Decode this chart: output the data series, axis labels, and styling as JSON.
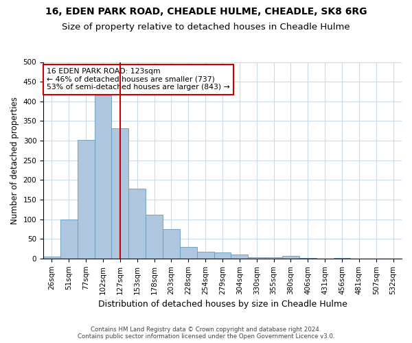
{
  "title1": "16, EDEN PARK ROAD, CHEADLE HULME, CHEADLE, SK8 6RG",
  "title2": "Size of property relative to detached houses in Cheadle Hulme",
  "xlabel": "Distribution of detached houses by size in Cheadle Hulme",
  "ylabel": "Number of detached properties",
  "footer1": "Contains HM Land Registry data © Crown copyright and database right 2024.",
  "footer2": "Contains public sector information licensed under the Open Government Licence v3.0.",
  "bin_labels": [
    "26sqm",
    "51sqm",
    "77sqm",
    "102sqm",
    "127sqm",
    "153sqm",
    "178sqm",
    "203sqm",
    "228sqm",
    "254sqm",
    "279sqm",
    "304sqm",
    "330sqm",
    "355sqm",
    "380sqm",
    "406sqm",
    "431sqm",
    "456sqm",
    "481sqm",
    "507sqm",
    "532sqm"
  ],
  "bar_values": [
    5,
    100,
    302,
    415,
    332,
    177,
    111,
    75,
    30,
    17,
    16,
    10,
    4,
    4,
    6,
    1,
    0,
    2,
    0,
    0,
    0
  ],
  "bar_color": "#aec6de",
  "bar_edge_color": "#6699bb",
  "vline_bin_index": 4,
  "vline_color": "#cc0000",
  "annotation_line1": "16 EDEN PARK ROAD: 123sqm",
  "annotation_line2": "← 46% of detached houses are smaller (737)",
  "annotation_line3": "53% of semi-detached houses are larger (843) →",
  "annotation_box_color": "#ffffff",
  "annotation_box_edge": "#cc0000",
  "ylim": [
    0,
    500
  ],
  "yticks": [
    0,
    50,
    100,
    150,
    200,
    250,
    300,
    350,
    400,
    450,
    500
  ],
  "background_color": "#ffffff",
  "grid_color": "#c8d8ec",
  "title1_fontsize": 10,
  "title2_fontsize": 9.5,
  "xlabel_fontsize": 9,
  "ylabel_fontsize": 8.5,
  "tick_fontsize": 7.5,
  "annotation_fontsize": 7.8
}
